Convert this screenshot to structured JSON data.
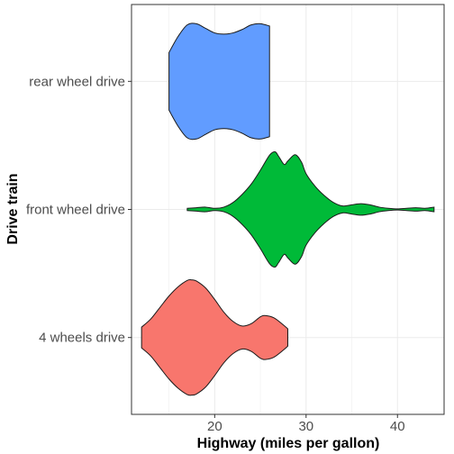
{
  "chart_data": {
    "type": "violin",
    "orientation": "horizontal",
    "xlabel": "Highway (miles per gallon)",
    "ylabel": "Drive train",
    "xlim": [
      10.9,
      45.1
    ],
    "x_ticks": [
      20,
      30,
      40
    ],
    "categories": [
      "4 wheels drive",
      "front wheel drive",
      "rear wheel drive"
    ],
    "grid": true,
    "legend": "none",
    "series": [
      {
        "name": "4 wheels drive",
        "color": "#F8766D",
        "range": [
          12,
          28
        ],
        "density": [
          [
            12,
            0.18
          ],
          [
            13,
            0.32
          ],
          [
            14,
            0.52
          ],
          [
            15,
            0.72
          ],
          [
            16,
            0.88
          ],
          [
            17,
            0.99
          ],
          [
            17.5,
            1.0
          ],
          [
            18,
            0.98
          ],
          [
            19,
            0.86
          ],
          [
            20,
            0.66
          ],
          [
            21,
            0.44
          ],
          [
            22,
            0.28
          ],
          [
            23,
            0.2
          ],
          [
            24,
            0.24
          ],
          [
            25,
            0.36
          ],
          [
            25.6,
            0.38
          ],
          [
            26.5,
            0.34
          ],
          [
            27.5,
            0.22
          ],
          [
            28,
            0.15
          ]
        ]
      },
      {
        "name": "front wheel drive",
        "color": "#00BA38",
        "range": [
          17,
          44
        ],
        "density": [
          [
            17,
            0.02
          ],
          [
            18,
            0.03
          ],
          [
            19,
            0.04
          ],
          [
            20,
            0.02
          ],
          [
            21,
            0.04
          ],
          [
            22,
            0.12
          ],
          [
            23,
            0.26
          ],
          [
            24,
            0.44
          ],
          [
            25,
            0.68
          ],
          [
            26,
            0.94
          ],
          [
            26.6,
            1.0
          ],
          [
            27,
            0.92
          ],
          [
            27.6,
            0.78
          ],
          [
            28,
            0.84
          ],
          [
            28.8,
            0.95
          ],
          [
            29.5,
            0.82
          ],
          [
            30,
            0.62
          ],
          [
            31,
            0.4
          ],
          [
            32,
            0.24
          ],
          [
            33,
            0.12
          ],
          [
            34,
            0.06
          ],
          [
            35,
            0.08
          ],
          [
            36,
            0.1
          ],
          [
            37,
            0.08
          ],
          [
            38,
            0.04
          ],
          [
            39,
            0.02
          ],
          [
            40,
            0.01
          ],
          [
            41,
            0.02
          ],
          [
            42,
            0.03
          ],
          [
            43,
            0.02
          ],
          [
            44,
            0.04
          ]
        ]
      },
      {
        "name": "rear wheel drive",
        "color": "#619CFF",
        "range": [
          15,
          26
        ],
        "density": [
          [
            15,
            0.5
          ],
          [
            16,
            0.78
          ],
          [
            17,
            0.98
          ],
          [
            18,
            1.0
          ],
          [
            19,
            0.92
          ],
          [
            20,
            0.84
          ],
          [
            21,
            0.82
          ],
          [
            22,
            0.84
          ],
          [
            23,
            0.9
          ],
          [
            24,
            0.98
          ],
          [
            25,
            1.0
          ],
          [
            26,
            0.96
          ]
        ]
      }
    ]
  }
}
